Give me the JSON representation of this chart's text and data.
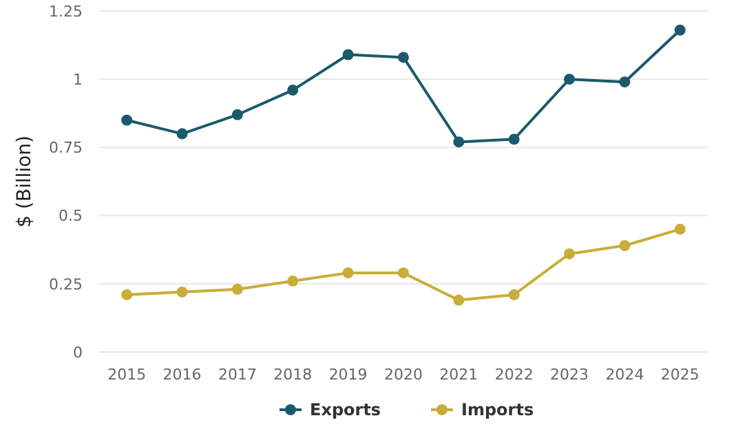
{
  "chart_data": {
    "type": "line",
    "ylabel": "$ (Billion)",
    "categories": [
      "2015",
      "2016",
      "2017",
      "2018",
      "2019",
      "2020",
      "2021",
      "2022",
      "2023",
      "2024",
      "2025"
    ],
    "series": [
      {
        "name": "Exports",
        "color": "#1b5a6a",
        "values": [
          0.85,
          0.8,
          0.87,
          0.96,
          1.09,
          1.08,
          0.77,
          0.78,
          1.0,
          0.99,
          1.18
        ]
      },
      {
        "name": "Imports",
        "color": "#c9ad3a",
        "values": [
          0.21,
          0.22,
          0.23,
          0.26,
          0.29,
          0.29,
          0.19,
          0.21,
          0.36,
          0.39,
          0.45
        ]
      }
    ],
    "ylim": [
      0,
      1.25
    ],
    "yticks": [
      0,
      {
        "value": 0.25,
        "label": "0.25"
      },
      {
        "value": 0.5,
        "label": "0.5"
      },
      {
        "value": 0.75,
        "label": "0.75"
      },
      1,
      {
        "value": 1.25,
        "label": "1.25"
      }
    ],
    "grid": "y",
    "legend": "bottom",
    "marker": "circle",
    "line_style": "solid"
  }
}
